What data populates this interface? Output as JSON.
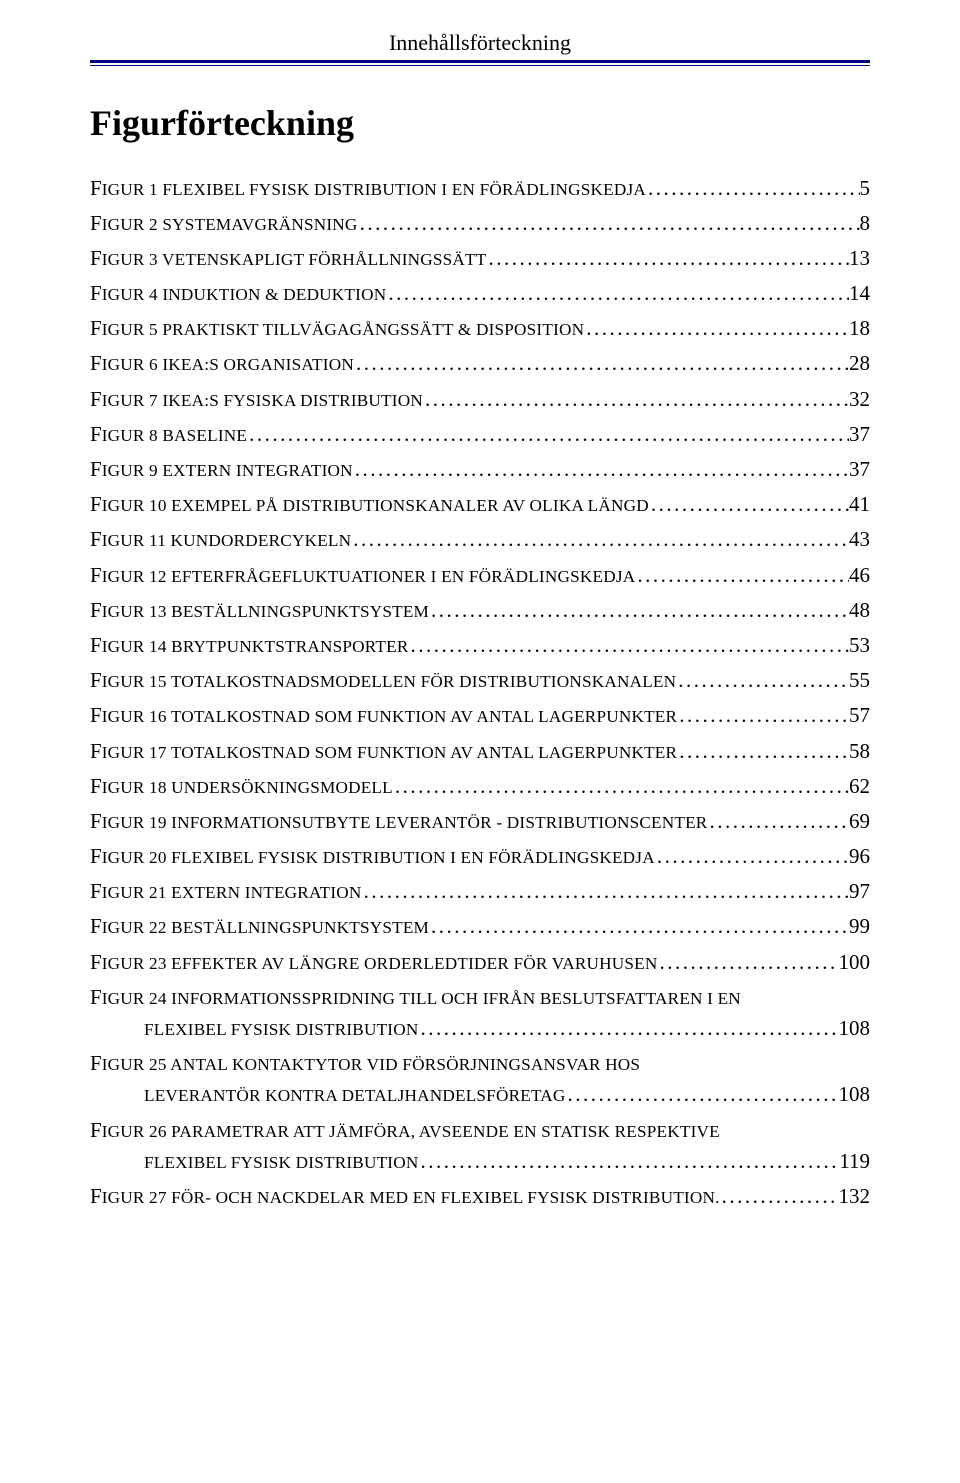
{
  "header": {
    "title": "Innehållsförteckning"
  },
  "section": {
    "title": "Figurförteckning"
  },
  "entries": [
    {
      "lead": "F",
      "rest": "IGUR 1 FLEXIBEL FYSISK DISTRIBUTION I EN FÖRÄDLINGSKEDJA",
      "page": "5"
    },
    {
      "lead": "F",
      "rest": "IGUR 2 SYSTEMAVGRÄNSNING",
      "page": "8"
    },
    {
      "lead": "F",
      "rest": "IGUR 3 VETENSKAPLIGT FÖRHÅLLNINGSSÄTT",
      "page": "13"
    },
    {
      "lead": "F",
      "rest": "IGUR 4 INDUKTION & DEDUKTION",
      "page": "14"
    },
    {
      "lead": "F",
      "rest": "IGUR 5 PRAKTISKT TILLVÄGAGÅNGSSÄTT & DISPOSITION",
      "page": "18"
    },
    {
      "lead": "F",
      "rest": "IGUR 6 IKEA:S ORGANISATION",
      "page": "28"
    },
    {
      "lead": "F",
      "rest": "IGUR 7 IKEA:S FYSISKA DISTRIBUTION",
      "page": "32"
    },
    {
      "lead": "F",
      "rest": "IGUR 8 BASELINE",
      "page": "37"
    },
    {
      "lead": "F",
      "rest": "IGUR 9 EXTERN INTEGRATION",
      "page": "37"
    },
    {
      "lead": "F",
      "rest": "IGUR 10 EXEMPEL PÅ DISTRIBUTIONSKANALER AV OLIKA LÄNGD",
      "page": "41"
    },
    {
      "lead": "F",
      "rest": "IGUR 11 KUNDORDERCYKELN",
      "page": "43"
    },
    {
      "lead": "F",
      "rest": "IGUR 12 EFTERFRÅGEFLUKTUATIONER I EN FÖRÄDLINGSKEDJA",
      "page": "46"
    },
    {
      "lead": "F",
      "rest": "IGUR 13 BESTÄLLNINGSPUNKTSYSTEM",
      "page": "48"
    },
    {
      "lead": "F",
      "rest": "IGUR 14 BRYTPUNKTSTRANSPORTER",
      "page": "53"
    },
    {
      "lead": "F",
      "rest": "IGUR 15 TOTALKOSTNADSMODELLEN FÖR DISTRIBUTIONSKANALEN",
      "page": "55"
    },
    {
      "lead": "F",
      "rest": "IGUR 16 TOTALKOSTNAD SOM FUNKTION AV ANTAL LAGERPUNKTER",
      "page": "57"
    },
    {
      "lead": "F",
      "rest": "IGUR 17 TOTALKOSTNAD SOM FUNKTION AV ANTAL LAGERPUNKTER",
      "page": "58"
    },
    {
      "lead": "F",
      "rest": "IGUR 18 UNDERSÖKNINGSMODELL",
      "page": "62"
    },
    {
      "lead": "F",
      "rest": "IGUR 19 INFORMATIONSUTBYTE LEVERANTÖR - DISTRIBUTIONSCENTER",
      "page": "69"
    },
    {
      "lead": "F",
      "rest": "IGUR 20 FLEXIBEL FYSISK DISTRIBUTION I EN FÖRÄDLINGSKEDJA",
      "page": "96"
    },
    {
      "lead": "F",
      "rest": "IGUR 21 EXTERN INTEGRATION",
      "page": "97"
    },
    {
      "lead": "F",
      "rest": "IGUR 22 BESTÄLLNINGSPUNKTSYSTEM",
      "page": "99"
    },
    {
      "lead": "F",
      "rest": "IGUR 23 EFFEKTER AV LÄNGRE ORDERLEDTIDER FÖR VARUHUSEN",
      "page": "100"
    },
    {
      "lead": "F",
      "rest": "IGUR 24 INFORMATIONSSPRIDNING TILL OCH IFRÅN BESLUTSFATTAREN I EN",
      "cont_rest": "FLEXIBEL FYSISK DISTRIBUTION",
      "page": "108"
    },
    {
      "lead": "F",
      "rest": "IGUR 25 ANTAL KONTAKTYTOR VID FÖRSÖRJNINGSANSVAR HOS",
      "cont_rest": "LEVERANTÖR KONTRA DETALJHANDELSFÖRETAG",
      "page": "108"
    },
    {
      "lead": "F",
      "rest": "IGUR 26 PARAMETRAR ATT JÄMFÖRA, AVSEENDE EN STATISK RESPEKTIVE",
      "cont_rest": "FLEXIBEL FYSISK DISTRIBUTION",
      "page": "119"
    },
    {
      "lead": "F",
      "rest": "IGUR 27 FÖR- OCH NACKDELAR MED EN FLEXIBEL FYSISK DISTRIBUTION.",
      "page": "132"
    }
  ]
}
